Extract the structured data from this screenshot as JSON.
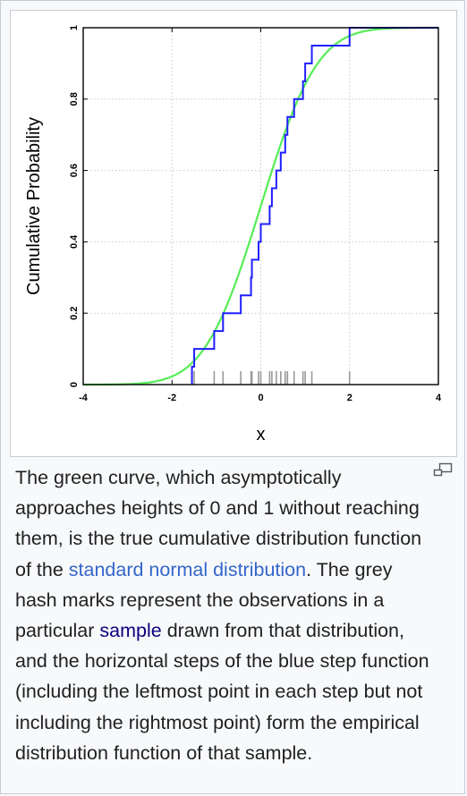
{
  "chart_data": {
    "type": "line",
    "xlabel": "x",
    "ylabel": "Cumulative Probability",
    "xlim": [
      -4,
      4
    ],
    "ylim": [
      0,
      1
    ],
    "x_ticks": [
      "-4",
      "-2",
      "0",
      "2",
      "4"
    ],
    "y_ticks": [
      "0",
      "0.2",
      "0.4",
      "0.6",
      "0.8",
      "1"
    ],
    "grid": true,
    "legend": "none",
    "series": [
      {
        "kind": "normal-cdf-curve",
        "color": "#55ee55",
        "x_from": -4,
        "x_to": 4
      },
      {
        "kind": "empirical-step",
        "color": "#1f1fff",
        "sample": [
          -1.55,
          -1.5,
          -1.05,
          -0.85,
          -0.45,
          -0.22,
          -0.2,
          -0.05,
          0.0,
          0.2,
          0.25,
          0.35,
          0.45,
          0.55,
          0.6,
          0.75,
          0.95,
          1.0,
          1.15,
          2.0
        ]
      },
      {
        "kind": "hash-marks",
        "color": "#9a9a9a"
      }
    ]
  },
  "caption": {
    "part1": "The green curve, which asymptotically approaches heights of 0 and 1 without reaching them, is the true cumulative distribution function of the ",
    "link1": "standard normal distribution",
    "part2": ". The grey hash marks represent the observations in a particular ",
    "link2": "sample",
    "part3": " drawn from that distribution, and the horizontal steps of the blue step function (including the leftmost point in each step but not including the rightmost point) form the empirical distribution function of that sample."
  },
  "icons": {
    "enlarge": "magnify-clip-icon"
  }
}
